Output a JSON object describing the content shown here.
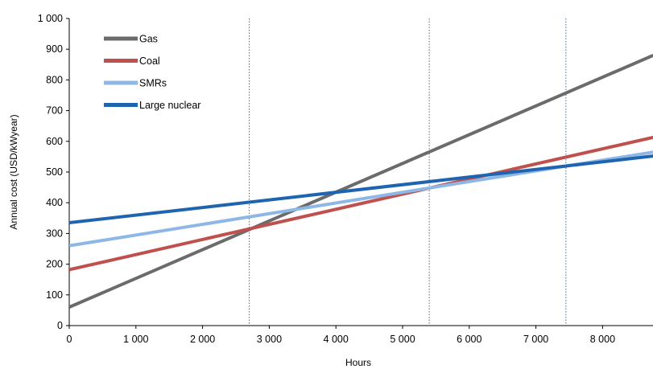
{
  "chart_data": {
    "type": "line",
    "title": "",
    "xlabel": "Hours",
    "ylabel": "Annual cost (USD/kWyear)",
    "xlim": [
      0,
      8760
    ],
    "ylim": [
      0,
      1000
    ],
    "x_ticks": [
      0,
      1000,
      2000,
      3000,
      4000,
      5000,
      6000,
      7000,
      8000
    ],
    "x_tick_labels": [
      "0",
      "1 000",
      "2 000",
      "3 000",
      "4 000",
      "5 000",
      "6 000",
      "7 000",
      "8 000"
    ],
    "y_ticks": [
      0,
      100,
      200,
      300,
      400,
      500,
      600,
      700,
      800,
      900,
      1000
    ],
    "y_tick_labels": [
      "0",
      "100",
      "200",
      "300",
      "400",
      "500",
      "600",
      "700",
      "800",
      "900",
      "1 000"
    ],
    "vertical_reference_lines_x": [
      2700,
      5400,
      7450
    ],
    "grid": false,
    "legend_position": "top-left",
    "series": [
      {
        "name": "Gas",
        "color": "#6b6b6b",
        "x": [
          0,
          8760
        ],
        "y": [
          60,
          880
        ]
      },
      {
        "name": "Coal",
        "color": "#c0504d",
        "x": [
          0,
          8760
        ],
        "y": [
          182,
          613
        ]
      },
      {
        "name": "SMRs",
        "color": "#8db8e6",
        "x": [
          0,
          8760
        ],
        "y": [
          260,
          565
        ]
      },
      {
        "name": "Large nuclear",
        "color": "#1f64b0",
        "x": [
          0,
          8760
        ],
        "y": [
          335,
          552
        ]
      }
    ]
  }
}
